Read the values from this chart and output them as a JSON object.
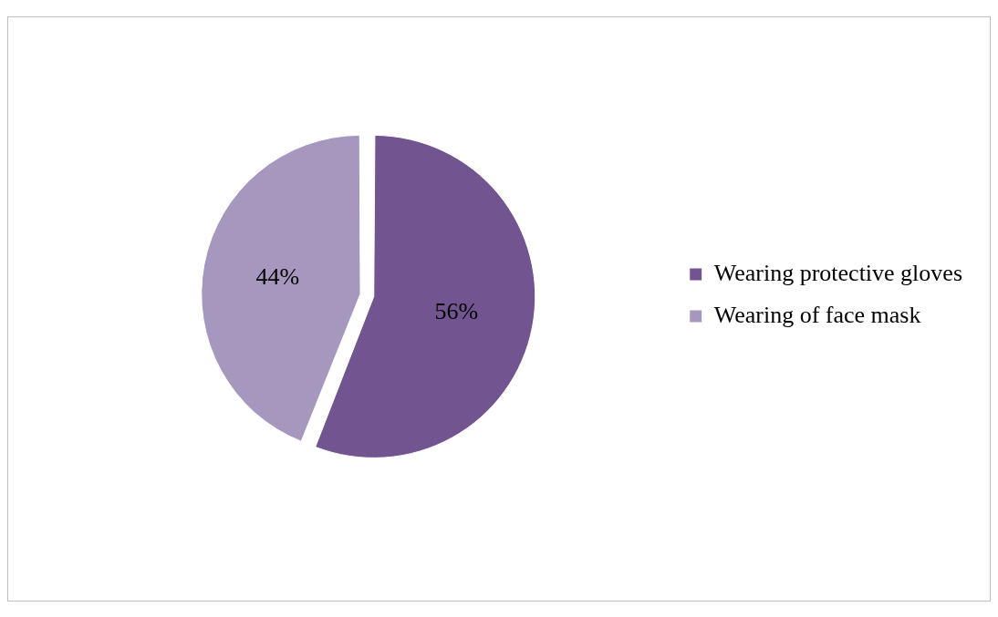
{
  "chart_data": {
    "type": "pie",
    "categories": [
      "Wearing protective gloves",
      "Wearing of face mask"
    ],
    "values": [
      56,
      44
    ],
    "colors": [
      "#725590",
      "#a597bd"
    ],
    "value_labels": [
      "56%",
      "44%"
    ],
    "legend": "right"
  }
}
